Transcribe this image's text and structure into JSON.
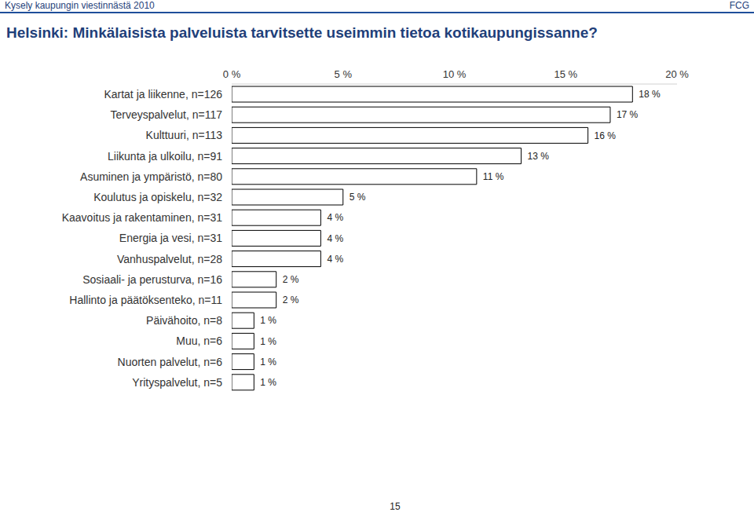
{
  "header": {
    "left": "Kysely kaupungin viestinnästä 2010",
    "right": "FCG"
  },
  "page_number": "15",
  "chart_data": {
    "type": "bar",
    "title": "Helsinki: Minkälaisista palveluista tarvitsette useimmin tietoa kotikaupungissanne?",
    "orientation": "horizontal",
    "categories": [
      "Kartat ja liikenne, n=126",
      "Terveyspalvelut, n=117",
      "Kulttuuri, n=113",
      "Liikunta ja ulkoilu, n=91",
      "Asuminen ja ympäristö, n=80",
      "Koulutus ja opiskelu, n=32",
      "Kaavoitus ja rakentaminen, n=31",
      "Energia ja vesi, n=31",
      "Vanhuspalvelut, n=28",
      "Sosiaali- ja perusturva, n=16",
      "Hallinto ja päätöksenteko, n=11",
      "Päivähoito, n=8",
      "Muu, n=6",
      "Nuorten palvelut, n=6",
      "Yrityspalvelut, n=5"
    ],
    "values": [
      18,
      17,
      16,
      13,
      11,
      5,
      4,
      4,
      4,
      2,
      2,
      1,
      1,
      1,
      1
    ],
    "value_labels": [
      "18 %",
      "17 %",
      "16 %",
      "13 %",
      "11 %",
      "5 %",
      "4 %",
      "4 %",
      "4 %",
      "2 %",
      "2 %",
      "1 %",
      "1 %",
      "1 %",
      "1 %"
    ],
    "data_labels": true,
    "color": "#ffffff",
    "xlim": [
      0,
      20
    ],
    "xticks": [
      {
        "value": 0,
        "label": "0 %"
      },
      {
        "value": 5,
        "label": "5 %"
      },
      {
        "value": 10,
        "label": "10 %"
      },
      {
        "value": 15,
        "label": "15 %"
      },
      {
        "value": 20,
        "label": "20 %"
      }
    ],
    "grid": false
  }
}
